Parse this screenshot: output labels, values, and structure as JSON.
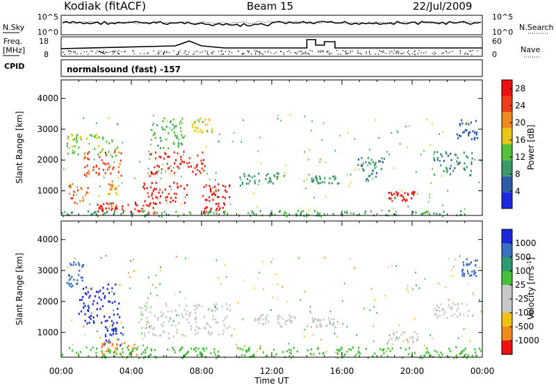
{
  "header": {
    "station": "Kodiak (fitACF)",
    "beam": "Beam 15",
    "date": "22/Jul/2009"
  },
  "panels": {
    "nsky_label": "N.Sky",
    "nsky_ticks": [
      "10^5",
      "10^0"
    ],
    "nsearch_label": "N.Search",
    "nsearch_ticks": [
      "10^5",
      "10^0"
    ],
    "freq_label": "Freq.",
    "freq_unit": "[MHz]",
    "freq_ticks": [
      "18",
      "8"
    ],
    "nave_label": "Nave",
    "nave_ticks": [
      "60",
      "0"
    ],
    "cpid_label": "CPID",
    "cpid_value": "normalsound (fast) -157"
  },
  "chart_data": [
    {
      "type": "heatmap",
      "title": "",
      "xlabel": "Time UT",
      "ylabel": "Slant Range [km]",
      "x_ticks": [
        "00:00",
        "04:00",
        "08:00",
        "12:00",
        "16:00",
        "20:00",
        "00:00"
      ],
      "xlim_hours": [
        0,
        24
      ],
      "ylim": [
        200,
        4600
      ],
      "y_ticks": [
        1000,
        2000,
        3000,
        4000
      ],
      "colorbar_label": "Power [dB]",
      "colorbar_ticks": [
        4,
        8,
        12,
        16,
        20,
        24,
        28
      ],
      "colorbar_range": [
        0,
        30
      ],
      "colors": [
        "#1c28e0",
        "#2e5aa8",
        "#3a9a6a",
        "#52c23a",
        "#e8c814",
        "#f08a1e",
        "#f03a18",
        "#ee1010"
      ],
      "regions": [
        {
          "t": [
            0.3,
            3.2
          ],
          "r": [
            2100,
            2900
          ],
          "v": 14
        },
        {
          "t": [
            0.4,
            1.5
          ],
          "r": [
            600,
            1300
          ],
          "v": 22
        },
        {
          "t": [
            1.2,
            3.4
          ],
          "r": [
            1500,
            2300
          ],
          "v": 24
        },
        {
          "t": [
            2.6,
            3.2
          ],
          "r": [
            900,
            1300
          ],
          "v": 20
        },
        {
          "t": [
            2.0,
            5.5
          ],
          "r": [
            300,
            650
          ],
          "v": 27
        },
        {
          "t": [
            4.6,
            7.2
          ],
          "r": [
            600,
            1300
          ],
          "v": 28
        },
        {
          "t": [
            5.0,
            8.2
          ],
          "r": [
            1500,
            2300
          ],
          "v": 26
        },
        {
          "t": [
            5.2,
            7.0
          ],
          "r": [
            2400,
            3400
          ],
          "v": 12
        },
        {
          "t": [
            7.4,
            8.6
          ],
          "r": [
            2900,
            3400
          ],
          "v": 16
        },
        {
          "t": [
            8.0,
            9.6
          ],
          "r": [
            300,
            1300
          ],
          "v": 29
        },
        {
          "t": [
            10.1,
            12.8
          ],
          "r": [
            1200,
            1600
          ],
          "v": 10
        },
        {
          "t": [
            14.2,
            15.8
          ],
          "r": [
            1250,
            1500
          ],
          "v": 9
        },
        {
          "t": [
            16.8,
            18.4
          ],
          "r": [
            1300,
            2100
          ],
          "v": 8
        },
        {
          "t": [
            18.6,
            20.2
          ],
          "r": [
            700,
            1000
          ],
          "v": 28
        },
        {
          "t": [
            21.2,
            23.4
          ],
          "r": [
            1500,
            2300
          ],
          "v": 8
        },
        {
          "t": [
            22.5,
            23.7
          ],
          "r": [
            2700,
            3400
          ],
          "v": 6
        },
        {
          "t": [
            0.0,
            24.0
          ],
          "r": [
            200,
            380
          ],
          "v": 11
        }
      ]
    },
    {
      "type": "heatmap",
      "title": "",
      "xlabel": "Time UT",
      "ylabel": "Slant Range [km]",
      "x_ticks": [
        "00:00",
        "04:00",
        "08:00",
        "12:00",
        "16:00",
        "20:00",
        "00:00"
      ],
      "xlim_hours": [
        0,
        24
      ],
      "ylim": [
        200,
        4600
      ],
      "y_ticks": [
        1000,
        2000,
        3000,
        4000
      ],
      "colorbar_label": "Velocity [m s^-1]",
      "colorbar_ticks": [
        "1000",
        "500",
        "100",
        "25",
        "-25",
        "-100",
        "-500",
        "-1000"
      ],
      "colors": [
        "#1c28e0",
        "#3a70c0",
        "#2e9a72",
        "#44c23a",
        "#c8c8c8",
        "#c8c8c8",
        "#f0c012",
        "#f08a1e",
        "#ee1010"
      ],
      "regions": [
        {
          "t": [
            0.3,
            1.3
          ],
          "r": [
            2500,
            3300
          ],
          "v": 500
        },
        {
          "t": [
            0.9,
            3.3
          ],
          "r": [
            1200,
            2600
          ],
          "v": 900
        },
        {
          "t": [
            2.4,
            3.5
          ],
          "r": [
            600,
            1200
          ],
          "v": 700
        },
        {
          "t": [
            2.2,
            4.4
          ],
          "r": [
            300,
            700
          ],
          "v": -200
        },
        {
          "t": [
            4.4,
            9.6
          ],
          "r": [
            900,
            2000
          ],
          "v": 0
        },
        {
          "t": [
            10.8,
            13.2
          ],
          "r": [
            1300,
            1600
          ],
          "v": 0
        },
        {
          "t": [
            14.1,
            15.6
          ],
          "r": [
            1200,
            1500
          ],
          "v": 0
        },
        {
          "t": [
            18.5,
            20.3
          ],
          "r": [
            600,
            1050
          ],
          "v": 0
        },
        {
          "t": [
            21.2,
            23.2
          ],
          "r": [
            1500,
            2000
          ],
          "v": 0
        },
        {
          "t": [
            0.0,
            24.0
          ],
          "r": [
            200,
            560
          ],
          "v": 60
        },
        {
          "t": [
            22.8,
            23.7
          ],
          "r": [
            2800,
            3400
          ],
          "v": 600
        }
      ]
    }
  ]
}
